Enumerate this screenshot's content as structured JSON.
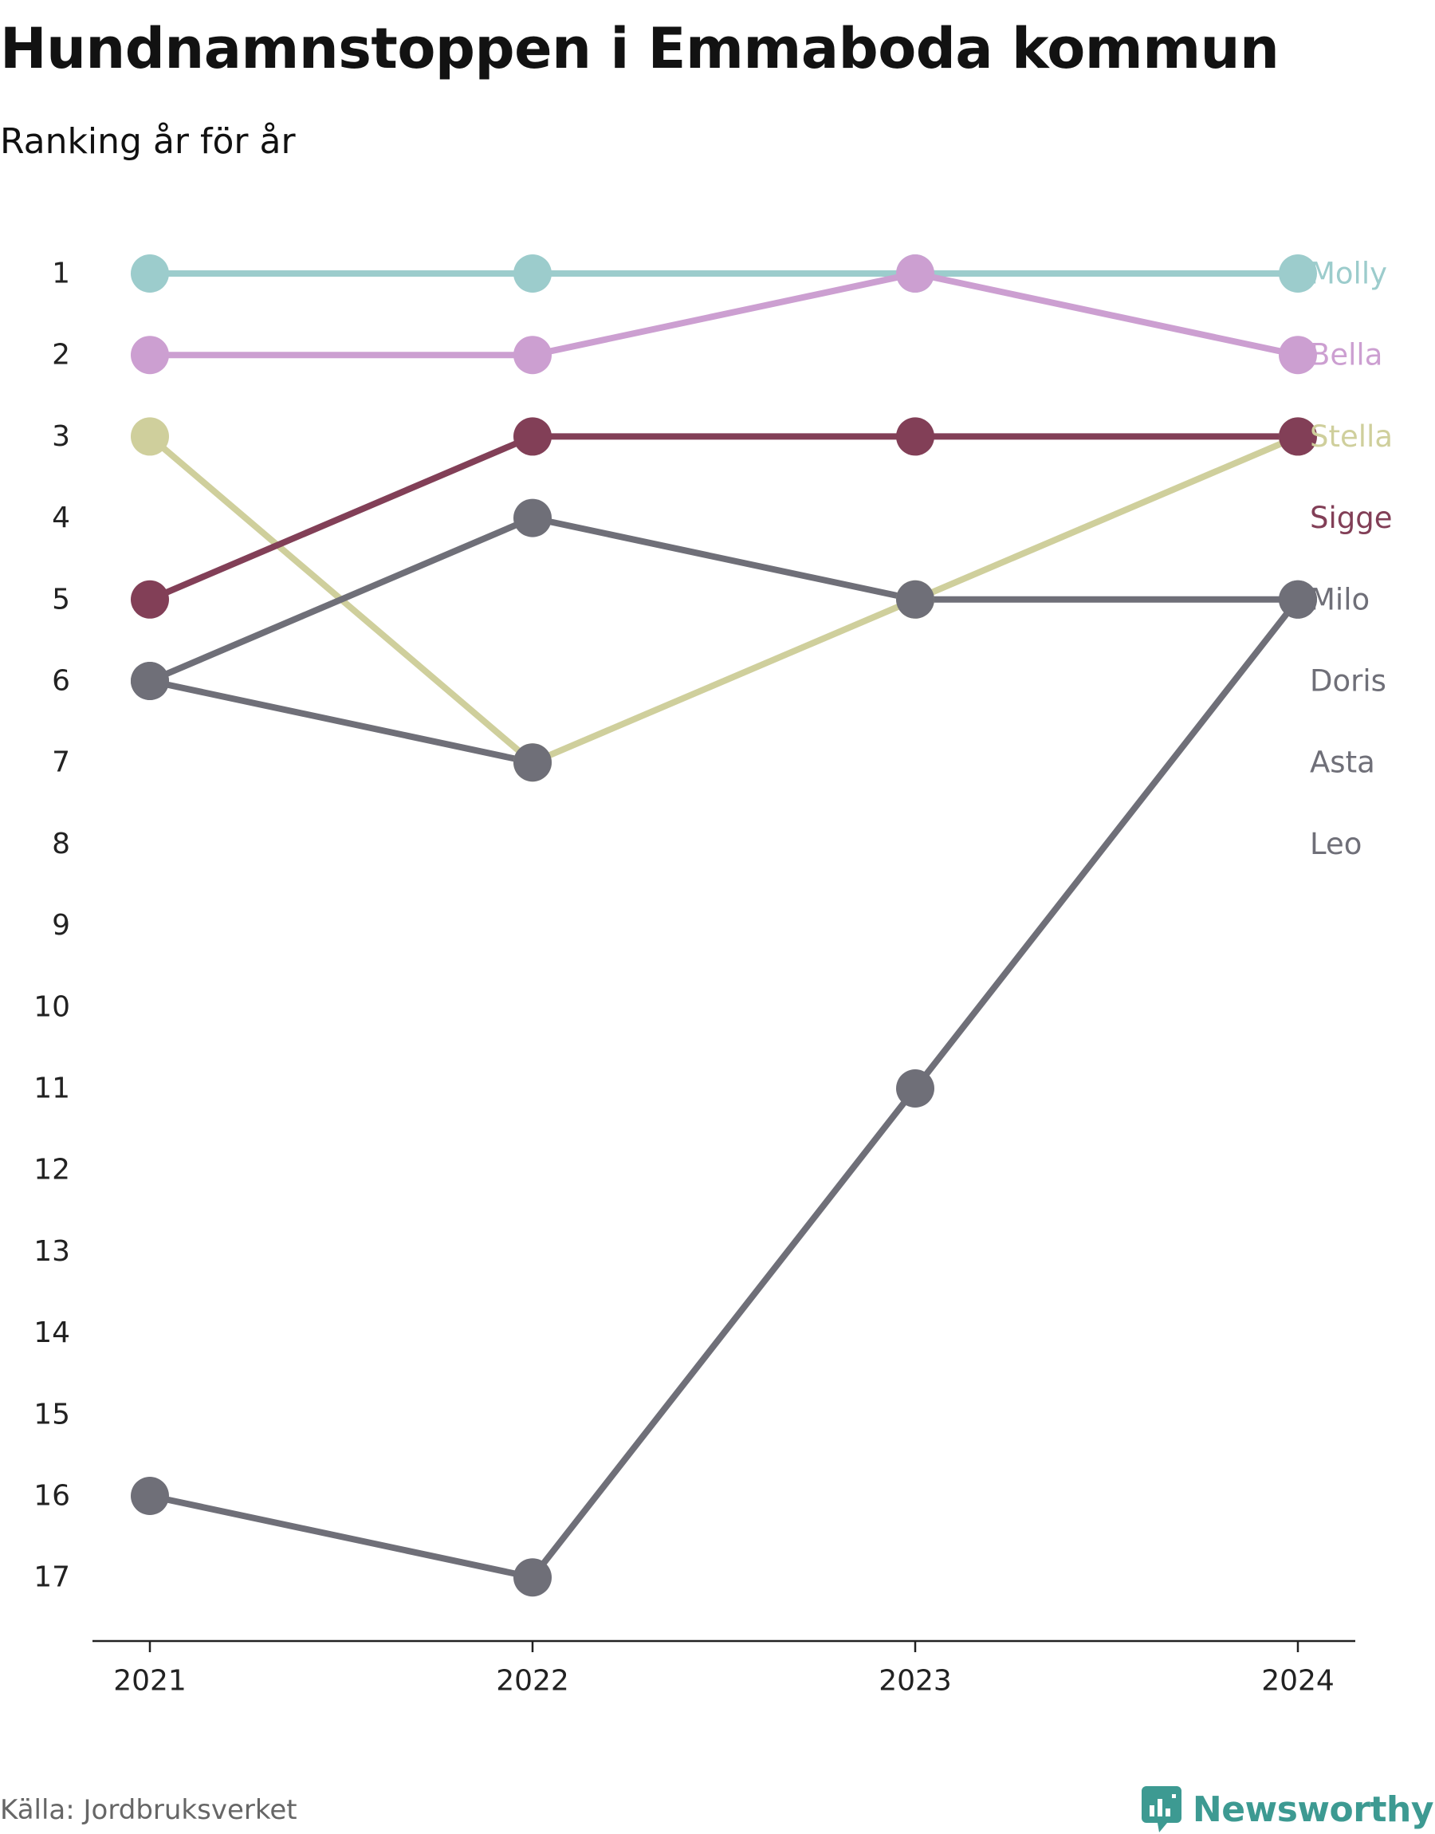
{
  "header": {
    "title": "Hundnamnstoppen i Emmaboda kommun",
    "subtitle": "Ranking år för år"
  },
  "footer": {
    "source": "Källa: Jordbruksverket",
    "brand": "Newsworthy",
    "brand_icon": "bar-chart-speech-icon",
    "brand_color": "#3d9a92"
  },
  "chart_data": {
    "type": "line",
    "x": [
      "2021",
      "2022",
      "2023",
      "2024"
    ],
    "y_ticks": [
      1,
      2,
      3,
      4,
      5,
      6,
      7,
      8,
      9,
      10,
      11,
      12,
      13,
      14,
      15,
      16,
      17
    ],
    "ylim": [
      1,
      17
    ],
    "y_inverted": true,
    "grid": false,
    "legend": "end-labels-right",
    "series": [
      {
        "name": "Molly",
        "color": "#9ccccc",
        "values": [
          1,
          1,
          1,
          1
        ]
      },
      {
        "name": "Bella",
        "color": "#cc9fd1",
        "values": [
          2,
          2,
          1,
          2
        ]
      },
      {
        "name": "Stella",
        "color": "#cfcf9c",
        "values": [
          3,
          7,
          5,
          3
        ]
      },
      {
        "name": "Sigge",
        "color": "#823f57",
        "values": [
          5,
          3,
          3,
          3
        ]
      },
      {
        "name": "Milo",
        "color": "#6f6f78",
        "values": [
          6,
          4,
          5,
          5
        ]
      },
      {
        "name": "Doris",
        "color": "#6f6f78",
        "values": [
          6,
          7,
          null,
          null
        ]
      },
      {
        "name": "Asta",
        "color": "#6f6f78",
        "values": [
          16,
          17,
          11,
          5
        ]
      },
      {
        "name": "Leo",
        "color": "#6f6f78",
        "values": [
          null,
          null,
          null,
          null
        ]
      }
    ]
  }
}
